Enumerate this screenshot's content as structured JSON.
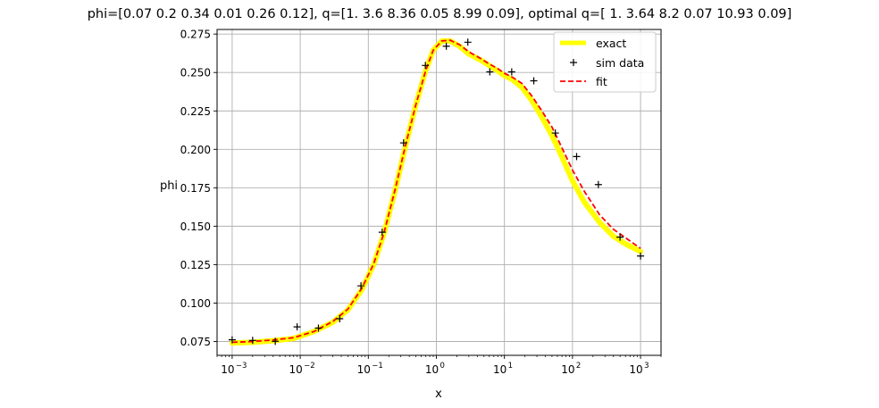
{
  "chart_data": {
    "type": "line",
    "title": "phi=[0.07 0.2  0.34 0.01 0.26 0.12], q=[1.   3.6  8.36 0.05 8.99 0.09], optimal q=[ 1.    3.64  8.2   0.07 10.93  0.09]",
    "xlabel": "x",
    "ylabel": "phi",
    "xscale": "log",
    "xlim": [
      0.0006,
      2000
    ],
    "ylim": [
      0.066,
      0.278
    ],
    "xticks": [
      {
        "value": 0.001,
        "base": "10",
        "exp": "−3"
      },
      {
        "value": 0.01,
        "base": "10",
        "exp": "−2"
      },
      {
        "value": 0.1,
        "base": "10",
        "exp": "−1"
      },
      {
        "value": 1,
        "base": "10",
        "exp": "0"
      },
      {
        "value": 10,
        "base": "10",
        "exp": "1"
      },
      {
        "value": 100,
        "base": "10",
        "exp": "2"
      },
      {
        "value": 1000,
        "base": "10",
        "exp": "3"
      }
    ],
    "yticks": [
      {
        "value": 0.075,
        "label": "0.075"
      },
      {
        "value": 0.1,
        "label": "0.100"
      },
      {
        "value": 0.125,
        "label": "0.125"
      },
      {
        "value": 0.15,
        "label": "0.150"
      },
      {
        "value": 0.175,
        "label": "0.175"
      },
      {
        "value": 0.2,
        "label": "0.200"
      },
      {
        "value": 0.225,
        "label": "0.225"
      },
      {
        "value": 0.25,
        "label": "0.250"
      },
      {
        "value": 0.275,
        "label": "0.275"
      }
    ],
    "grid": true,
    "legend_position": "top-right",
    "series": [
      {
        "name": "exact",
        "style": "line",
        "color": "#ffff00",
        "x": [
          0.001,
          0.002,
          0.004,
          0.008,
          0.016,
          0.03,
          0.05,
          0.08,
          0.12,
          0.17,
          0.25,
          0.35,
          0.5,
          0.7,
          0.9,
          1.2,
          1.6,
          2.2,
          3,
          4.5,
          6,
          8,
          10,
          13,
          18,
          25,
          35,
          50,
          70,
          100,
          150,
          250,
          400,
          600,
          1000
        ],
        "y": [
          0.074,
          0.0745,
          0.0755,
          0.077,
          0.0815,
          0.0875,
          0.0955,
          0.1085,
          0.125,
          0.145,
          0.174,
          0.2015,
          0.229,
          0.2515,
          0.2645,
          0.2705,
          0.2705,
          0.267,
          0.262,
          0.258,
          0.2545,
          0.251,
          0.248,
          0.2455,
          0.2405,
          0.232,
          0.2215,
          0.209,
          0.195,
          0.1795,
          0.1655,
          0.1525,
          0.1435,
          0.1385,
          0.1335
        ]
      },
      {
        "name": "sim data",
        "style": "markers",
        "marker": "+",
        "color": "#000000",
        "x": [
          0.001,
          0.002,
          0.0043,
          0.009,
          0.0185,
          0.038,
          0.078,
          0.16,
          0.33,
          0.69,
          1.4,
          2.9,
          6.1,
          12.8,
          27,
          56,
          115,
          240,
          500,
          1000
        ],
        "y": [
          0.0761,
          0.0757,
          0.0751,
          0.0845,
          0.0837,
          0.0898,
          0.1112,
          0.1461,
          0.2042,
          0.2546,
          0.2671,
          0.2697,
          0.2504,
          0.2504,
          0.2446,
          0.2106,
          0.1953,
          0.1771,
          0.1429,
          0.1306
        ]
      },
      {
        "name": "fit",
        "style": "dashed",
        "color": "#ff0000",
        "x": [
          0.001,
          0.002,
          0.004,
          0.008,
          0.016,
          0.03,
          0.05,
          0.08,
          0.12,
          0.17,
          0.25,
          0.35,
          0.5,
          0.7,
          0.9,
          1.2,
          1.6,
          2.2,
          3,
          4.5,
          6,
          8,
          10,
          13,
          18,
          25,
          35,
          50,
          70,
          100,
          150,
          250,
          400,
          600,
          1000
        ],
        "y": [
          0.0745,
          0.075,
          0.076,
          0.0775,
          0.0815,
          0.088,
          0.096,
          0.1095,
          0.1255,
          0.1455,
          0.1745,
          0.202,
          0.229,
          0.2515,
          0.2645,
          0.2705,
          0.271,
          0.268,
          0.2635,
          0.259,
          0.2555,
          0.2525,
          0.2495,
          0.247,
          0.243,
          0.235,
          0.2255,
          0.2145,
          0.201,
          0.1865,
          0.1725,
          0.1575,
          0.148,
          0.1425,
          0.1355
        ]
      }
    ]
  }
}
